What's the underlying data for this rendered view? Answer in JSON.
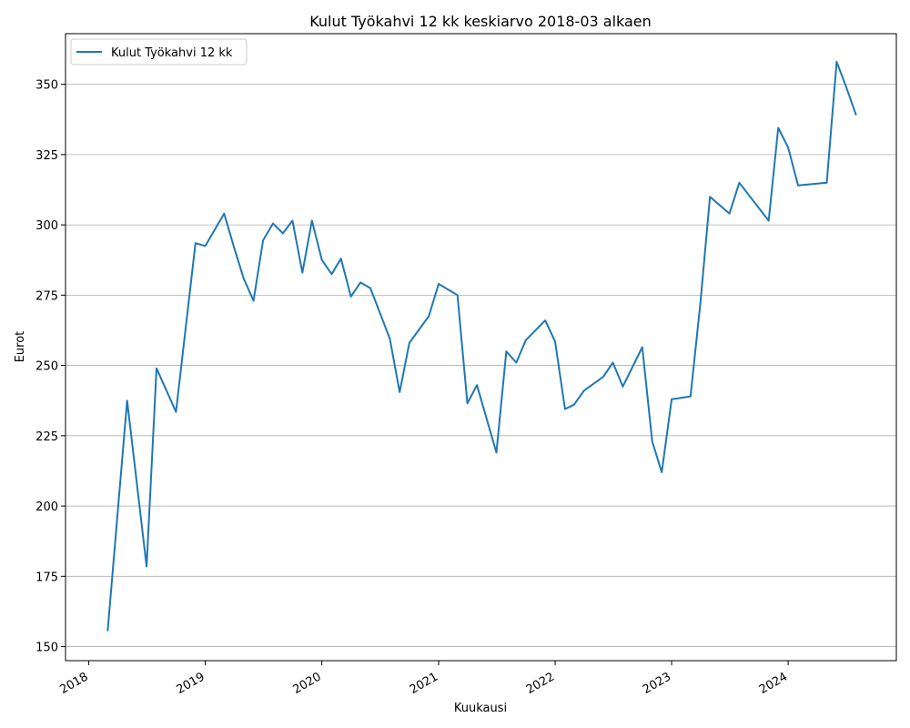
{
  "chart_data": {
    "type": "line",
    "title": "Kulut Työkahvi 12 kk keskiarvo 2018-03 alkaen",
    "xlabel": "Kuukausi",
    "ylabel": "Eurot",
    "grid": "horizontal",
    "legend_position": "top-left",
    "ylim": [
      145,
      368
    ],
    "xlim": [
      "2017-10-20",
      "2024-12-05"
    ],
    "x_ticks": [
      "2018",
      "2019",
      "2020",
      "2021",
      "2022",
      "2023",
      "2024"
    ],
    "y_ticks": [
      150,
      175,
      200,
      225,
      250,
      275,
      300,
      325,
      350
    ],
    "series": [
      {
        "name": "Kulut Työkahvi 12 kk",
        "color": "#1f77b4",
        "x": [
          "2018-03",
          "2018-05",
          "2018-07",
          "2018-08",
          "2018-10",
          "2018-12",
          "2019-01",
          "2019-03",
          "2019-04",
          "2019-05",
          "2019-06",
          "2019-07",
          "2019-08",
          "2019-09",
          "2019-10",
          "2019-11",
          "2019-12",
          "2020-01",
          "2020-02",
          "2020-03",
          "2020-04",
          "2020-05",
          "2020-06",
          "2020-08",
          "2020-09",
          "2020-10",
          "2020-12",
          "2021-01",
          "2021-03",
          "2021-04",
          "2021-05",
          "2021-07",
          "2021-08",
          "2021-09",
          "2021-10",
          "2021-12",
          "2022-01",
          "2022-02",
          "2022-03",
          "2022-04",
          "2022-06",
          "2022-07",
          "2022-08",
          "2022-10",
          "2022-11",
          "2022-12",
          "2023-01",
          "2023-03",
          "2023-04",
          "2023-05",
          "2023-07",
          "2023-08",
          "2023-11",
          "2023-12",
          "2024-01",
          "2024-02",
          "2024-05",
          "2024-06",
          "2024-07",
          "2024-08"
        ],
        "values": [
          155.5,
          237.5,
          178.5,
          249.0,
          233.5,
          293.5,
          292.5,
          304.0,
          292.0,
          281.0,
          273.0,
          294.5,
          300.5,
          297.0,
          301.5,
          283.0,
          301.5,
          287.5,
          282.5,
          288.0,
          274.5,
          279.5,
          277.5,
          259.5,
          240.5,
          258.0,
          267.5,
          279.0,
          275.0,
          236.5,
          243.0,
          219.0,
          255.0,
          251.0,
          259.0,
          266.0,
          258.5,
          234.5,
          236.0,
          241.0,
          246.0,
          251.0,
          242.5,
          256.5,
          223.0,
          212.0,
          238.0,
          239.0,
          272.0,
          310.0,
          304.0,
          315.0,
          301.5,
          334.5,
          327.5,
          314.0,
          315.0,
          358.0,
          349.0,
          339.0
        ]
      }
    ]
  }
}
